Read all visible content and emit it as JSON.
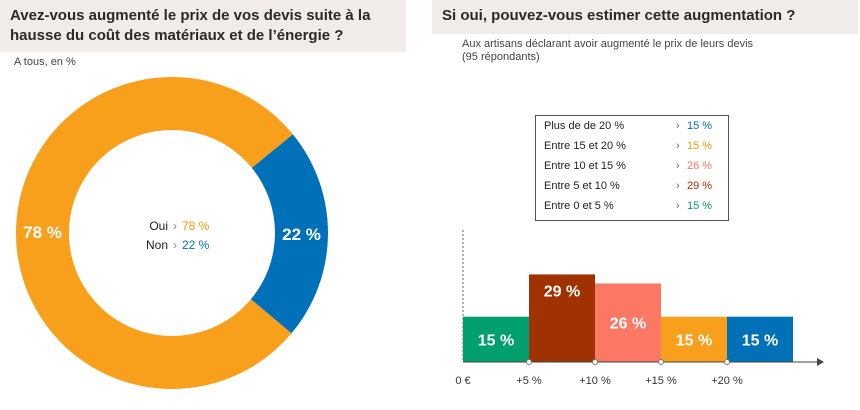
{
  "left": {
    "title_line1": "Avez-vous augmenté le prix de vos devis suite à la",
    "title_line2": "hausse du coût des matériaux et de l’énergie ?",
    "subtitle": "A tous, en %",
    "center": {
      "oui_label": "Oui",
      "oui_arrow": "›",
      "oui_value": "78 %",
      "non_label": "Non",
      "non_arrow": "›",
      "non_value": "22 %"
    }
  },
  "right": {
    "title": "Si oui, pouvez-vous estimer cette augmentation ?",
    "subtitle_line1": "Aux artisans déclarant avoir augmenté le prix de leurs devis",
    "subtitle_line2": "(95 répondants)",
    "legend": [
      {
        "label": "Plus de de 20 %",
        "arrow": "›",
        "value": "15 %",
        "color": "#0070b8"
      },
      {
        "label": "Entre 15 et 20 %",
        "arrow": "›",
        "value": "15 %",
        "color": "#f39a12"
      },
      {
        "label": "Entre 10 et 15 %",
        "arrow": "›",
        "value": "26 %",
        "color": "#fa7864"
      },
      {
        "label": "Entre 5 et 10 %",
        "arrow": "›",
        "value": "29 %",
        "color": "#a03100"
      },
      {
        "label": "Entre 0 et 5 %",
        "arrow": "›",
        "value": "15 %",
        "color": "#00a06e"
      }
    ]
  },
  "chart_data": [
    {
      "type": "pie",
      "variant": "donut",
      "title": "Avez-vous augmenté le prix de vos devis suite à la hausse du coût des matériaux et de l’énergie ?",
      "subtitle": "A tous, en %",
      "categories": [
        "Oui",
        "Non"
      ],
      "values": [
        78,
        22
      ],
      "labels": [
        "78 %",
        "22 %"
      ],
      "colors": [
        "#f8a01c",
        "#0070b8"
      ]
    },
    {
      "type": "bar",
      "variant": "histogram",
      "title": "Si oui, pouvez-vous estimer cette augmentation ?",
      "subtitle": "Aux artisans déclarant avoir augmenté le prix de leurs devis (95 répondants)",
      "categories": [
        "Entre 0 et 5 %",
        "Entre 5 et 10 %",
        "Entre 10 et 15 %",
        "Entre 15 et 20 %",
        "Plus de de 20 %"
      ],
      "values": [
        15,
        29,
        26,
        15,
        15
      ],
      "labels": [
        "15 %",
        "29 %",
        "26 %",
        "15 %",
        "15 %"
      ],
      "colors": [
        "#00a06e",
        "#a03100",
        "#fa7864",
        "#f8a01c",
        "#0070b8"
      ],
      "x_ticks": [
        "0 €",
        "+5 %",
        "+10 %",
        "+15 %",
        "+20 %"
      ],
      "ylim": [
        0,
        35
      ]
    }
  ]
}
